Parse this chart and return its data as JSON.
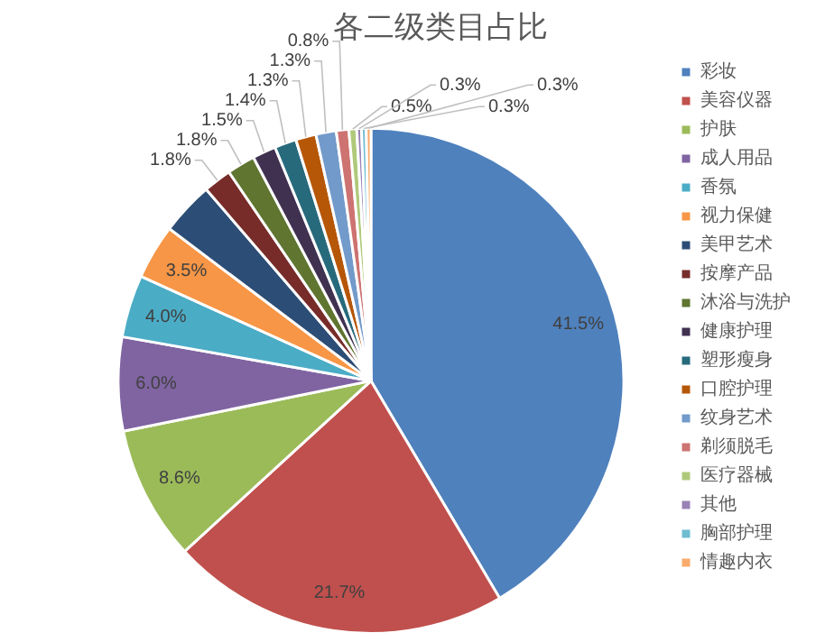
{
  "chart_data": {
    "type": "pie",
    "title": "各二级类目占比",
    "categories": [
      "彩妆",
      "美容仪器",
      "护肤",
      "成人用品",
      "香氛",
      "视力保健",
      "美甲艺术",
      "按摩产品",
      "沐浴与洗护",
      "健康护理",
      "塑形瘦身",
      "口腔护理",
      "纹身艺术",
      "剃须脱毛",
      "医疗器械",
      "其他",
      "胸部护理",
      "情趣内衣"
    ],
    "values": [
      41.5,
      21.7,
      8.6,
      6.0,
      4.0,
      3.5,
      3.4,
      1.8,
      1.8,
      1.5,
      1.4,
      1.3,
      1.3,
      0.8,
      0.5,
      0.3,
      0.3,
      0.3
    ],
    "value_labels": [
      "41.5%",
      "21.7%",
      "8.6%",
      "6.0%",
      "4.0%",
      "3.5%",
      null,
      "1.8%",
      "1.8%",
      "1.5%",
      "1.4%",
      "1.3%",
      "1.3%",
      "0.8%",
      "0.5%",
      "0.3%",
      "0.3%",
      "0.3%"
    ],
    "colors": [
      "#4f81bd",
      "#c0504d",
      "#9bbb59",
      "#8064a2",
      "#4bacc6",
      "#f79646",
      "#2c4d75",
      "#772c2a",
      "#5f7530",
      "#403151",
      "#276a7c",
      "#b65708",
      "#729aca",
      "#cd7371",
      "#afc97a",
      "#9983b5",
      "#6fbdd1",
      "#f9ab6b"
    ],
    "legend": "right"
  }
}
